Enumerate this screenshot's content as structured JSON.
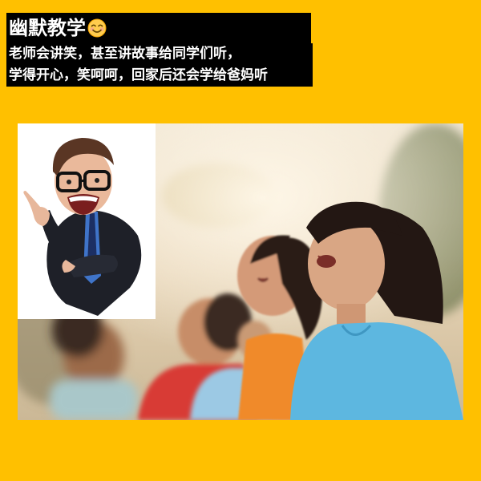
{
  "caption": {
    "title": "幽默教学",
    "title_emoji": "smiling-face-emoji",
    "line1": "老师会讲笑，甚至讲故事给同学们听，",
    "line2": "学得开心，笑呵呵，回家后还会学给爸妈听"
  },
  "colors": {
    "background": "#FFC000",
    "caption_bg": "#000000",
    "caption_text": "#FFFFFF"
  }
}
